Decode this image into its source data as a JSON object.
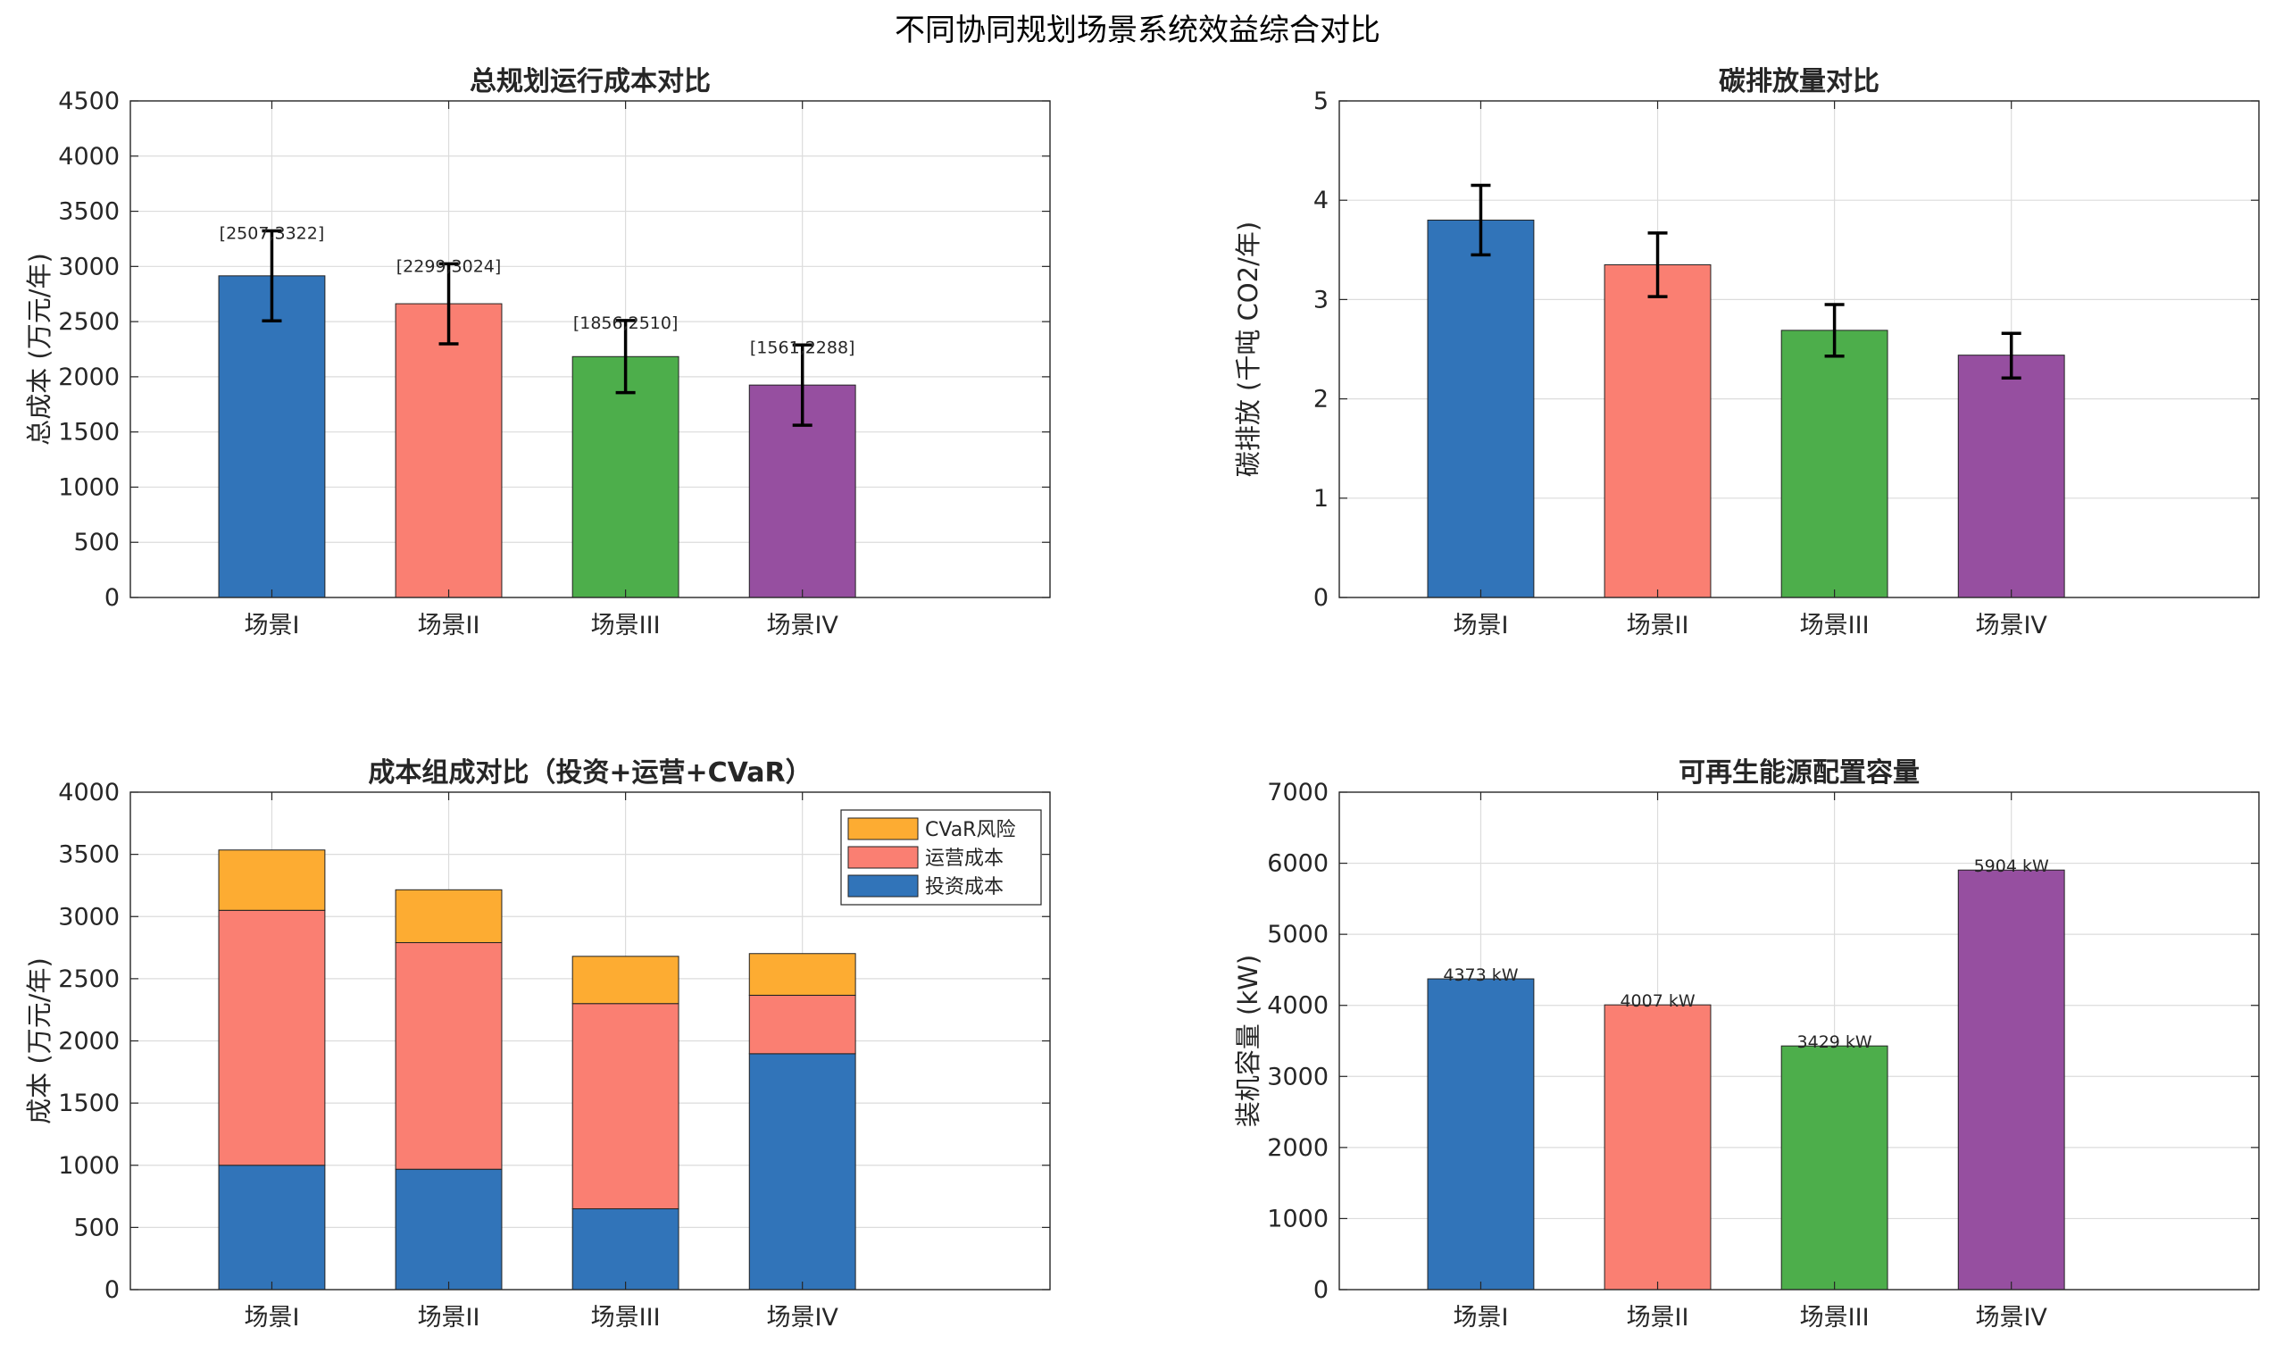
{
  "suptitle": "不同协同规划场景系统效益综合对比",
  "colors": {
    "scenario": [
      "#3174B9",
      "#FA7F72",
      "#4DAE4B",
      "#964FA0"
    ],
    "stack_invest": "#3174B9",
    "stack_oper": "#FA7F72",
    "stack_cvar": "#FDAC32",
    "errorbar": "#000000",
    "grid": "#dcdcdc"
  },
  "chart_data": [
    {
      "id": "cost",
      "type": "bar",
      "title": "总规划运行成本对比",
      "ylabel": "总成本 (万元/年)",
      "categories": [
        "场景I",
        "场景II",
        "场景III",
        "场景IV"
      ],
      "values": [
        2915,
        2662,
        2183,
        1925
      ],
      "error_low": [
        2507,
        2299,
        1856,
        1561
      ],
      "error_high": [
        3322,
        3024,
        2510,
        2288
      ],
      "data_labels": [
        "[2507,3322]",
        "[2299,3024]",
        "[1856,2510]",
        "[1561,2288]"
      ],
      "ylim": [
        0,
        4500
      ],
      "yticks": [
        0,
        500,
        1000,
        1500,
        2000,
        2500,
        3000,
        3500,
        4000,
        4500
      ],
      "ytick_labels": [
        "0",
        "500",
        "1000",
        "1500",
        "2000",
        "2500",
        "3000",
        "3500",
        "4000",
        "4500"
      ],
      "grid": true
    },
    {
      "id": "carbon",
      "type": "bar",
      "title": "碳排放量对比",
      "ylabel": "碳排放 (千吨 CO2/年)",
      "categories": [
        "场景I",
        "场景II",
        "场景III",
        "场景IV"
      ],
      "values": [
        3.8,
        3.35,
        2.69,
        2.44
      ],
      "error_low": [
        3.45,
        3.03,
        2.43,
        2.21
      ],
      "error_high": [
        4.15,
        3.67,
        2.95,
        2.66
      ],
      "ylim": [
        0,
        5
      ],
      "yticks": [
        0,
        1,
        2,
        3,
        4,
        5
      ],
      "ytick_labels": [
        "0",
        "1",
        "2",
        "3",
        "4",
        "5"
      ],
      "grid": true
    },
    {
      "id": "stack",
      "type": "bar",
      "stacked": true,
      "title": "成本组成对比（投资+运营+CVaR）",
      "ylabel": "成本 (万元/年)",
      "categories": [
        "场景I",
        "场景II",
        "场景III",
        "场景IV"
      ],
      "series": [
        {
          "name": "投资成本",
          "values": [
            1000,
            968,
            650,
            1897
          ]
        },
        {
          "name": "运营成本",
          "values": [
            2050,
            1822,
            1650,
            470
          ]
        },
        {
          "name": "CVaR风险",
          "values": [
            485,
            425,
            380,
            335
          ]
        }
      ],
      "legend_order": [
        "CVaR风险",
        "运营成本",
        "投资成本"
      ],
      "legend_position": "top-right",
      "ylim": [
        0,
        4000
      ],
      "yticks": [
        0,
        500,
        1000,
        1500,
        2000,
        2500,
        3000,
        3500,
        4000
      ],
      "ytick_labels": [
        "0",
        "500",
        "1000",
        "1500",
        "2000",
        "2500",
        "3000",
        "3500",
        "4000"
      ],
      "grid": true
    },
    {
      "id": "renew",
      "type": "bar",
      "title": "可再生能源配置容量",
      "ylabel": "装机容量 (kW)",
      "categories": [
        "场景I",
        "场景II",
        "场景III",
        "场景IV"
      ],
      "values": [
        4373,
        4007,
        3429,
        5904
      ],
      "data_labels": [
        "4373 kW",
        "4007 kW",
        "3429 kW",
        "5904 kW"
      ],
      "ylim": [
        0,
        7000
      ],
      "yticks": [
        0,
        1000,
        2000,
        3000,
        4000,
        5000,
        6000,
        7000
      ],
      "ytick_labels": [
        "0",
        "1000",
        "2000",
        "3000",
        "4000",
        "5000",
        "6000",
        "7000"
      ],
      "grid": true
    }
  ]
}
